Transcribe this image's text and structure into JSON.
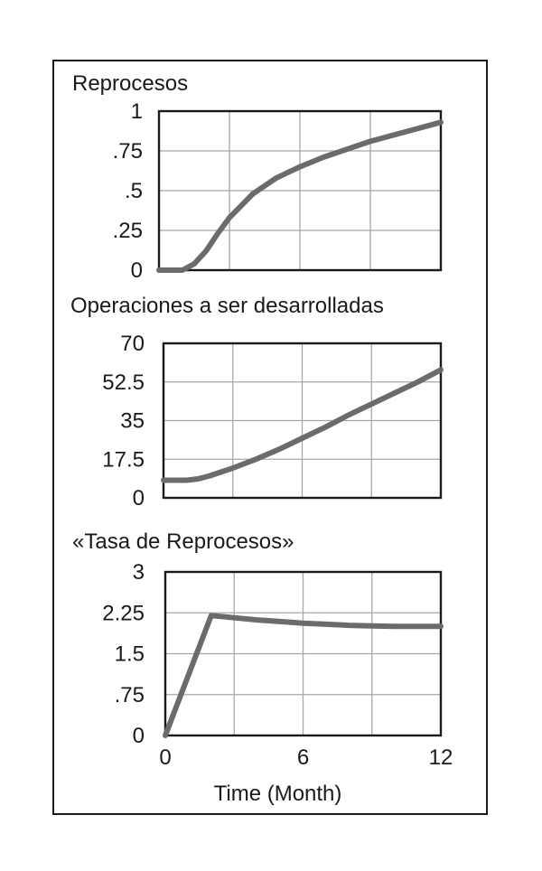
{
  "chart_data": [
    {
      "type": "line",
      "title": "Reprocesos",
      "yticks": [
        "0",
        ".25",
        ".5",
        ".75",
        "1"
      ],
      "ylim": [
        0,
        1
      ],
      "xlim": [
        0,
        12
      ],
      "grid": true,
      "series": [
        {
          "x": [
            0,
            0.5,
            1,
            1.5,
            2,
            2.5,
            3,
            4,
            5,
            6,
            7,
            8,
            9,
            10,
            11,
            12
          ],
          "y": [
            0.0,
            0.0,
            0.0,
            0.04,
            0.12,
            0.23,
            0.33,
            0.48,
            0.58,
            0.65,
            0.71,
            0.76,
            0.81,
            0.85,
            0.89,
            0.93
          ]
        }
      ]
    },
    {
      "type": "line",
      "title": "Operaciones a ser desarrolladas",
      "yticks": [
        "0",
        "17.5",
        "35",
        "52.5",
        "70"
      ],
      "ylim": [
        0,
        70
      ],
      "xlim": [
        0,
        12
      ],
      "grid": true,
      "series": [
        {
          "x": [
            0,
            0.5,
            1,
            1.5,
            2,
            3,
            4,
            5,
            6,
            7,
            8,
            9,
            10,
            11,
            12
          ],
          "y": [
            8,
            8,
            8,
            8.6,
            10,
            13.5,
            17.5,
            22,
            27,
            32,
            37.5,
            42.5,
            47.5,
            52.5,
            58
          ]
        }
      ]
    },
    {
      "type": "line",
      "title": "«Tasa de Reprocesos»",
      "yticks": [
        "0",
        ".75",
        "1.5",
        "2.25",
        "3"
      ],
      "ylim": [
        0,
        3
      ],
      "xlim": [
        0,
        12
      ],
      "xticks": [
        "0",
        "6",
        "12"
      ],
      "xlabel": "Time (Month)",
      "grid": true,
      "series": [
        {
          "x": [
            0,
            2,
            3,
            4,
            5,
            6,
            7,
            8,
            9,
            10,
            11,
            12
          ],
          "y": [
            0,
            2.2,
            2.16,
            2.12,
            2.09,
            2.06,
            2.04,
            2.02,
            2.01,
            2.0,
            2.0,
            2.0
          ]
        }
      ]
    }
  ],
  "style": {
    "line_color": "#6b6b6b",
    "axis_color": "#1a1a1a",
    "grid_color": "#a8a8a8"
  }
}
